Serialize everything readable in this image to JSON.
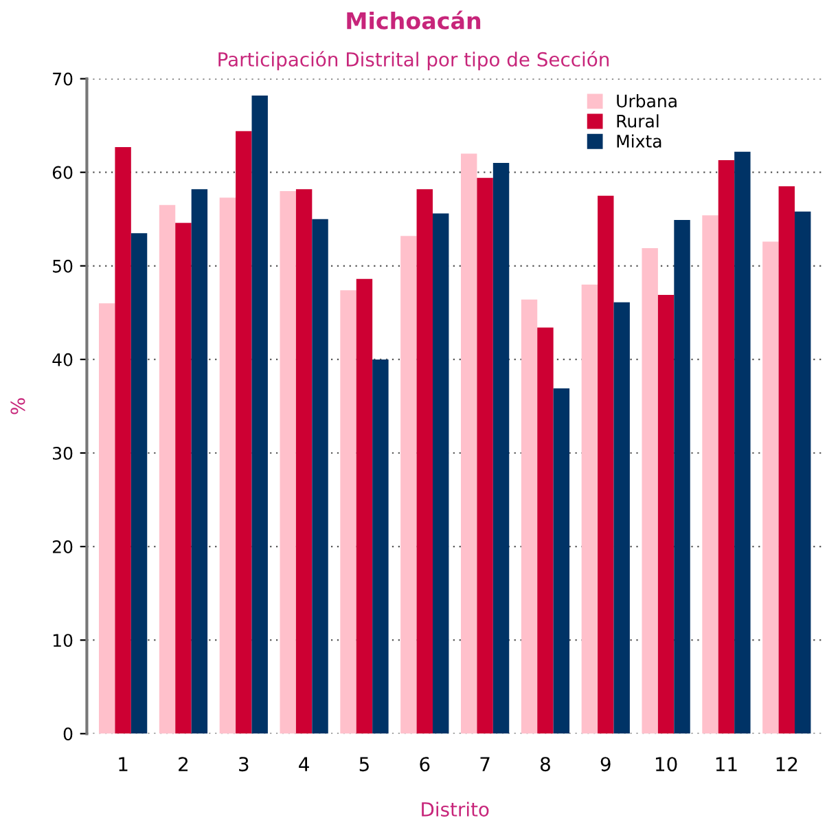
{
  "chart_data": {
    "type": "bar",
    "title": "Michoacán",
    "subtitle": "Participación Distrital por tipo de Sección",
    "xlabel": "Distrito",
    "ylabel": "%",
    "categories": [
      "1",
      "2",
      "3",
      "4",
      "5",
      "6",
      "7",
      "8",
      "9",
      "10",
      "11",
      "12"
    ],
    "series": [
      {
        "name": "Urbana",
        "color": "#ffc0cb",
        "values": [
          46,
          56.5,
          57.3,
          58,
          47.4,
          53.2,
          62,
          46.4,
          48,
          51.9,
          55.4,
          52.6
        ]
      },
      {
        "name": "Rural",
        "color": "#cd0033",
        "values": [
          62.7,
          54.6,
          64.4,
          58.2,
          48.6,
          58.2,
          59.4,
          43.4,
          57.5,
          46.9,
          61.3,
          58.5
        ]
      },
      {
        "name": "Mixta",
        "color": "#003366",
        "values": [
          53.5,
          58.2,
          68.2,
          55,
          40,
          55.6,
          61,
          36.9,
          46.1,
          54.9,
          62.2,
          55.8
        ]
      }
    ],
    "ylim": [
      0,
      70
    ],
    "yticks": [
      0,
      10,
      20,
      30,
      40,
      50,
      60,
      70
    ],
    "grid": "y",
    "legend": "top right"
  }
}
